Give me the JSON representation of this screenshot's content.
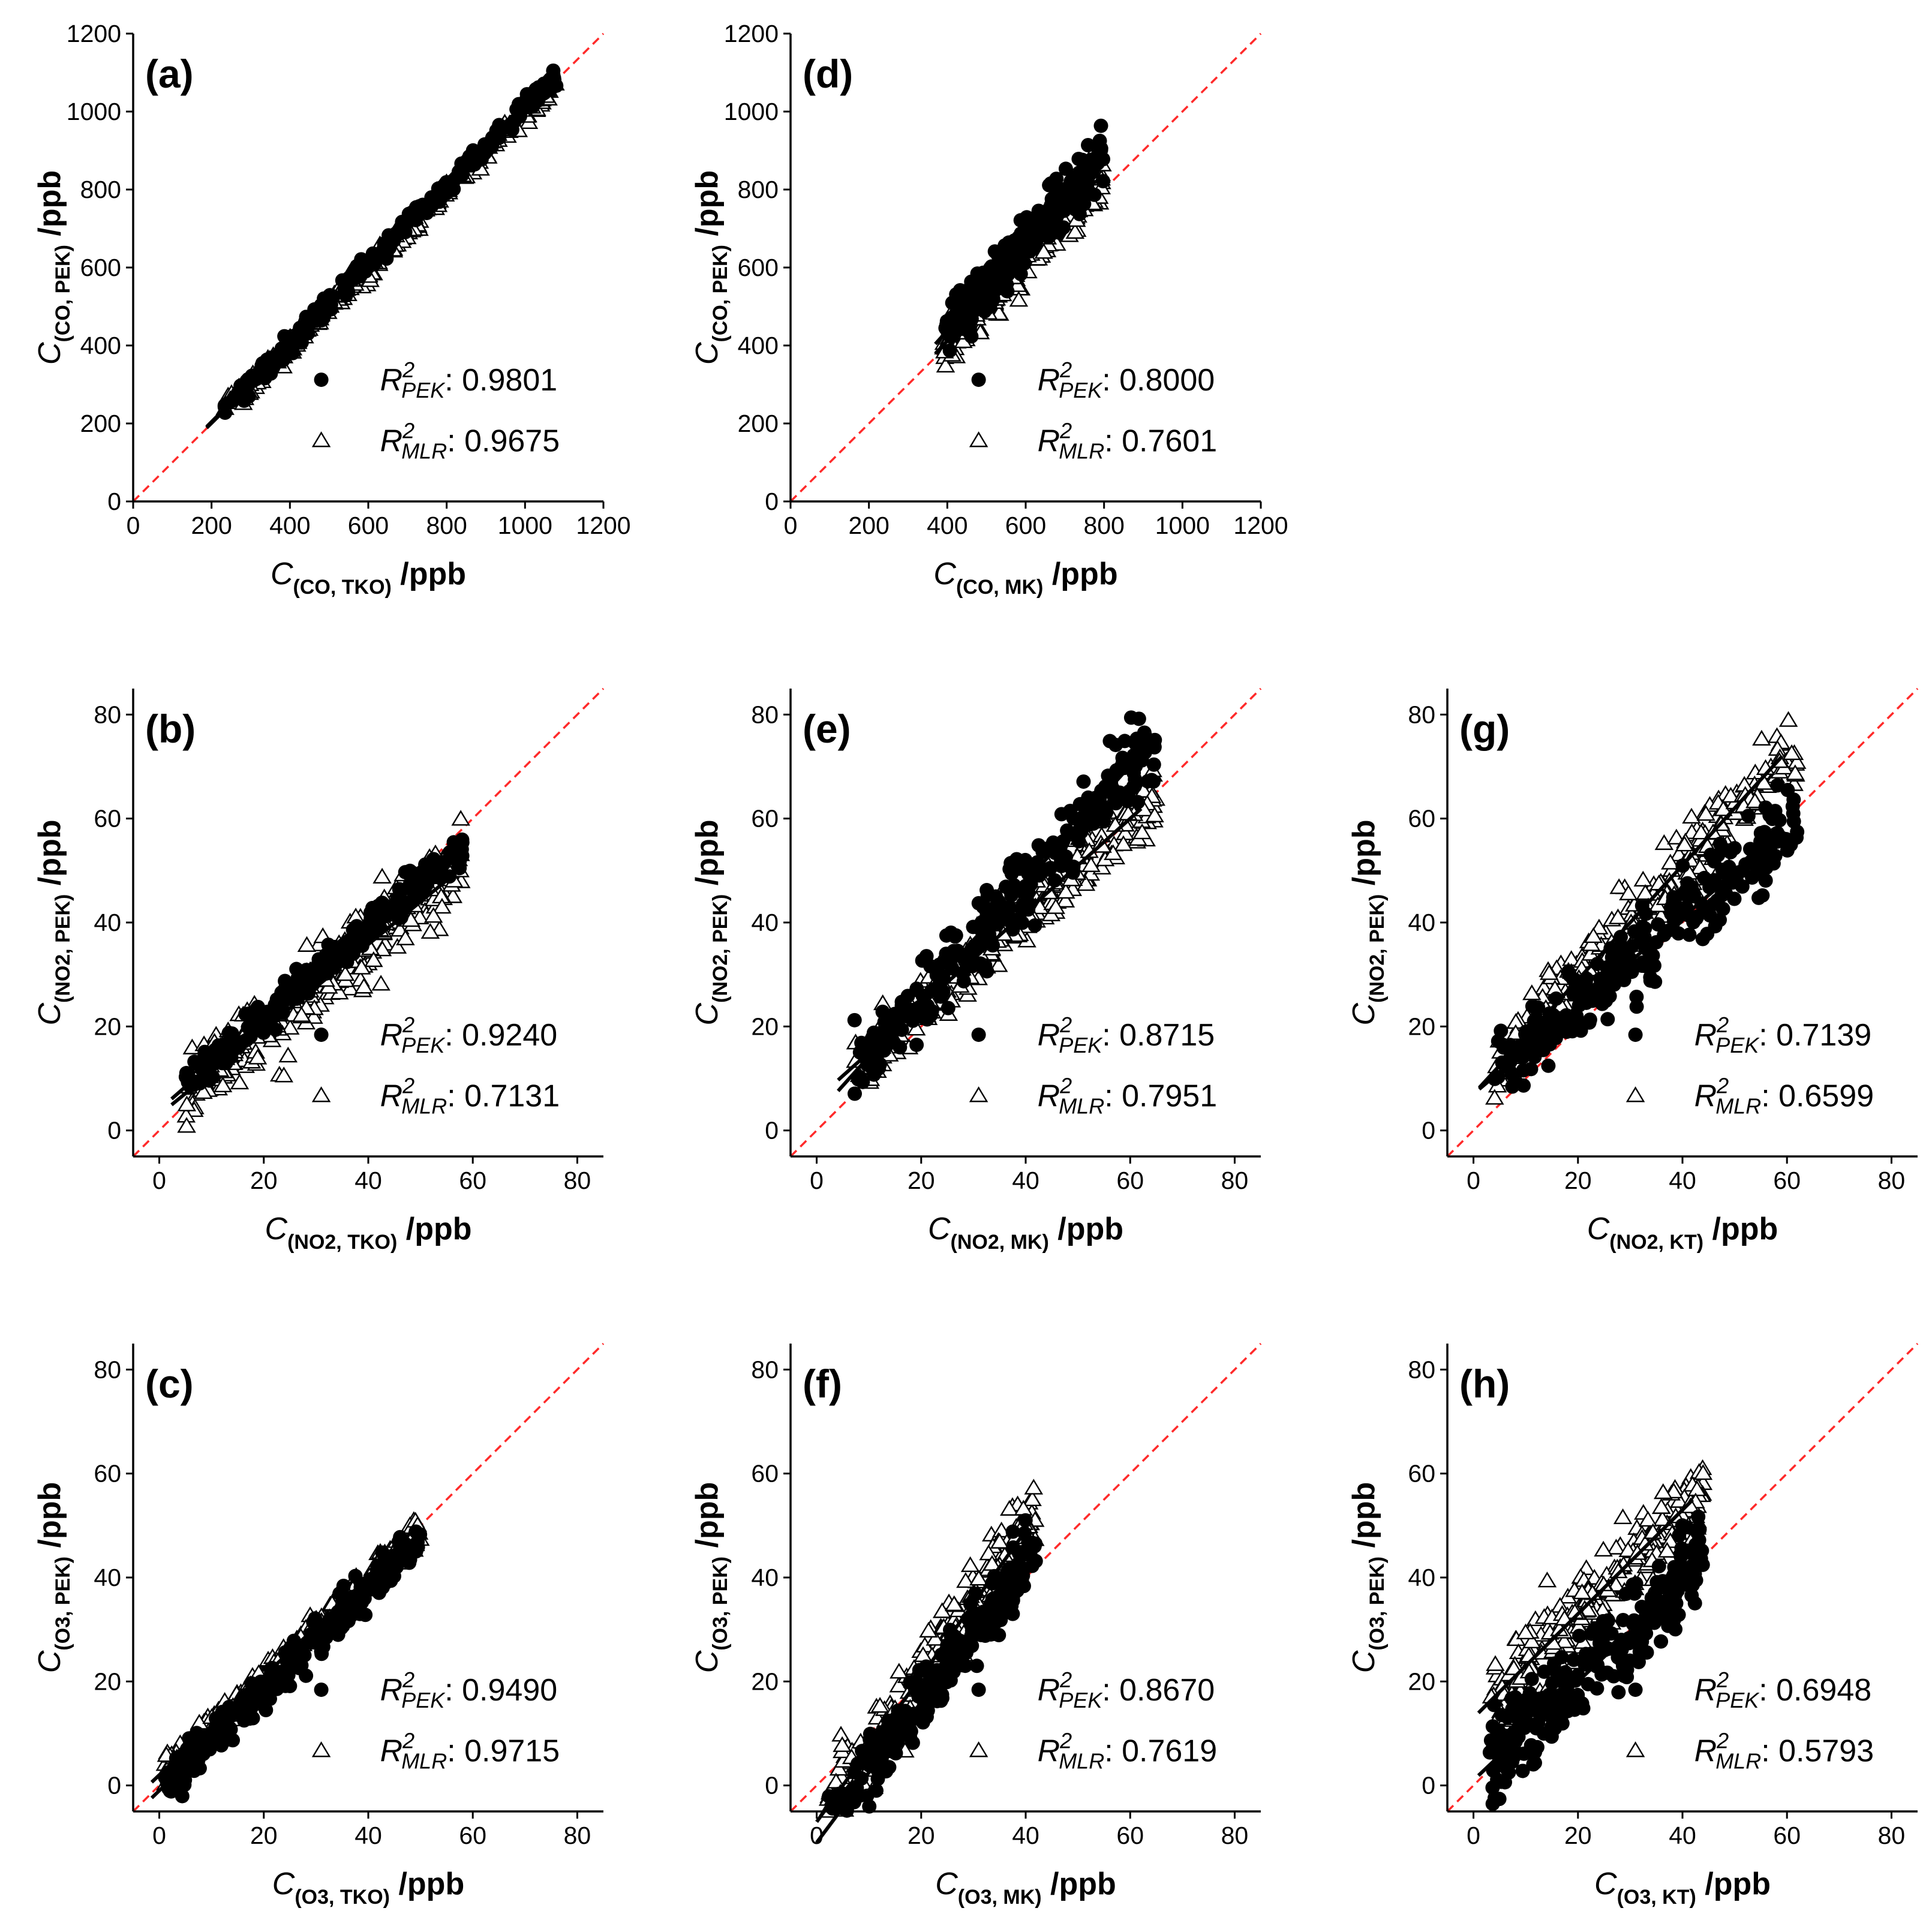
{
  "figure": {
    "legend": {
      "pek_marker": "filled-circle",
      "mlr_marker": "open-triangle",
      "r2_symbol": "R",
      "r2_sup": "2",
      "pek_sub": "PEK",
      "mlr_sub": "MLR"
    },
    "units": "/ppb",
    "colors": {
      "identity_line": "#ff2a2a",
      "points": "#000000",
      "fit_line": "#000000"
    }
  },
  "chart_data": [
    {
      "type": "scatter",
      "panel": "(a)",
      "pollutant": "CO",
      "x_symbol": "C",
      "x_sub": "(CO, TKO)",
      "y_symbol": "C",
      "y_sub": "(CO, PEK)",
      "unit": "/ppb",
      "xlim": [
        0,
        1200
      ],
      "ylim": [
        0,
        1200
      ],
      "xticks": [
        0,
        200,
        400,
        600,
        800,
        1000,
        1200
      ],
      "yticks": [
        0,
        200,
        400,
        600,
        800,
        1000,
        1200
      ],
      "r2_pek": "0.9801",
      "r2_mlr": "0.9675",
      "data_range": [
        230,
        1080
      ],
      "pek_fit": {
        "slope": 1.01,
        "intercept": 2
      },
      "mlr_fit": {
        "slope": 0.99,
        "intercept": 3
      },
      "pek_spread": 22,
      "mlr_spread": 26,
      "identity_line": true
    },
    {
      "type": "scatter",
      "panel": "(b)",
      "pollutant": "NO2",
      "x_symbol": "C",
      "x_sub": "(NO2, TKO)",
      "y_symbol": "C",
      "y_sub": "(NO2, PEK)",
      "unit": "/ppb",
      "xlim": [
        -5,
        85
      ],
      "ylim": [
        -5,
        85
      ],
      "xticks": [
        0,
        20,
        40,
        60,
        80
      ],
      "yticks": [
        0,
        20,
        40,
        60,
        80
      ],
      "r2_pek": "0.9240",
      "r2_mlr": "0.7131",
      "data_range": [
        5,
        58
      ],
      "pek_fit": {
        "slope": 0.88,
        "intercept": 4
      },
      "mlr_fit": {
        "slope": 0.82,
        "intercept": 3
      },
      "pek_spread": 3,
      "mlr_spread": 6,
      "identity_line": true
    },
    {
      "type": "scatter",
      "panel": "(c)",
      "pollutant": "O3",
      "x_symbol": "C",
      "x_sub": "(O3, TKO)",
      "y_symbol": "C",
      "y_sub": "(O3, PEK)",
      "unit": "/ppb",
      "xlim": [
        -5,
        85
      ],
      "ylim": [
        -5,
        85
      ],
      "xticks": [
        0,
        20,
        40,
        60,
        80
      ],
      "yticks": [
        0,
        20,
        40,
        60,
        80
      ],
      "r2_pek": "0.9490",
      "r2_mlr": "0.9715",
      "data_range": [
        1,
        50
      ],
      "pek_fit": {
        "slope": 0.97,
        "intercept": -1
      },
      "mlr_fit": {
        "slope": 0.95,
        "intercept": 2
      },
      "pek_spread": 3.5,
      "mlr_spread": 2.5,
      "identity_line": true
    },
    {
      "type": "scatter",
      "panel": "(d)",
      "pollutant": "CO",
      "x_symbol": "C",
      "x_sub": "(CO, MK)",
      "y_symbol": "C",
      "y_sub": "(CO, PEK)",
      "unit": "/ppb",
      "xlim": [
        0,
        1200
      ],
      "ylim": [
        0,
        1200
      ],
      "xticks": [
        0,
        200,
        400,
        600,
        800,
        1000,
        1200
      ],
      "yticks": [
        0,
        200,
        400,
        600,
        800,
        1000,
        1200
      ],
      "r2_pek": "0.8000",
      "r2_mlr": "0.7601",
      "data_range": [
        390,
        800
      ],
      "pek_fit": {
        "slope": 1.12,
        "intercept": -10
      },
      "mlr_fit": {
        "slope": 1.08,
        "intercept": -20
      },
      "pek_spread": 55,
      "mlr_spread": 55,
      "identity_line": true
    },
    {
      "type": "scatter",
      "panel": "(e)",
      "pollutant": "NO2",
      "x_symbol": "C",
      "x_sub": "(NO2, MK)",
      "y_symbol": "C",
      "y_sub": "(NO2, PEK)",
      "unit": "/ppb",
      "xlim": [
        -5,
        85
      ],
      "ylim": [
        -5,
        85
      ],
      "xticks": [
        0,
        20,
        40,
        60,
        80
      ],
      "yticks": [
        0,
        20,
        40,
        60,
        80
      ],
      "r2_pek": "0.8715",
      "r2_mlr": "0.7951",
      "data_range": [
        7,
        65
      ],
      "pek_fit": {
        "slope": 1.12,
        "intercept": 3
      },
      "mlr_fit": {
        "slope": 0.9,
        "intercept": 6
      },
      "pek_spread": 6,
      "mlr_spread": 5,
      "identity_line": true
    },
    {
      "type": "scatter",
      "panel": "(f)",
      "pollutant": "O3",
      "x_symbol": "C",
      "x_sub": "(O3, MK)",
      "y_symbol": "C",
      "y_sub": "(O3, PEK)",
      "unit": "/ppb",
      "xlim": [
        -5,
        85
      ],
      "ylim": [
        -5,
        85
      ],
      "xticks": [
        0,
        20,
        40,
        60,
        80
      ],
      "yticks": [
        0,
        20,
        40,
        60,
        80
      ],
      "r2_pek": "0.8670",
      "r2_mlr": "0.7619",
      "data_range": [
        2,
        42
      ],
      "pek_fit": {
        "slope": 1.35,
        "intercept": -11
      },
      "mlr_fit": {
        "slope": 1.4,
        "intercept": -7
      },
      "pek_spread": 5,
      "mlr_spread": 6,
      "identity_line": true
    },
    {
      "type": "scatter",
      "panel": "(g)",
      "pollutant": "NO2",
      "x_symbol": "C",
      "x_sub": "(NO2, KT)",
      "y_symbol": "C",
      "y_sub": "(NO2, PEK)",
      "unit": "/ppb",
      "xlim": [
        -5,
        85
      ],
      "ylim": [
        -5,
        85
      ],
      "xticks": [
        0,
        20,
        40,
        60,
        80
      ],
      "yticks": [
        0,
        20,
        40,
        60,
        80
      ],
      "r2_pek": "0.7139",
      "r2_mlr": "0.6599",
      "data_range": [
        4,
        62
      ],
      "pek_fit": {
        "slope": 0.85,
        "intercept": 7
      },
      "mlr_fit": {
        "slope": 1.1,
        "intercept": 7
      },
      "pek_spread": 6,
      "mlr_spread": 6,
      "identity_line": true
    },
    {
      "type": "scatter",
      "panel": "(h)",
      "pollutant": "O3",
      "x_symbol": "C",
      "x_sub": "(O3, KT)",
      "y_symbol": "C",
      "y_sub": "(O3, PEK)",
      "unit": "/ppb",
      "xlim": [
        -5,
        85
      ],
      "ylim": [
        -5,
        85
      ],
      "xticks": [
        0,
        20,
        40,
        60,
        80
      ],
      "yticks": [
        0,
        20,
        40,
        60,
        80
      ],
      "r2_pek": "0.6948",
      "r2_mlr": "0.5793",
      "data_range": [
        3,
        44
      ],
      "pek_fit": {
        "slope": 0.95,
        "intercept": 1
      },
      "mlr_fit": {
        "slope": 1.0,
        "intercept": 13
      },
      "pek_spread": 7,
      "mlr_spread": 7,
      "identity_line": true
    }
  ]
}
